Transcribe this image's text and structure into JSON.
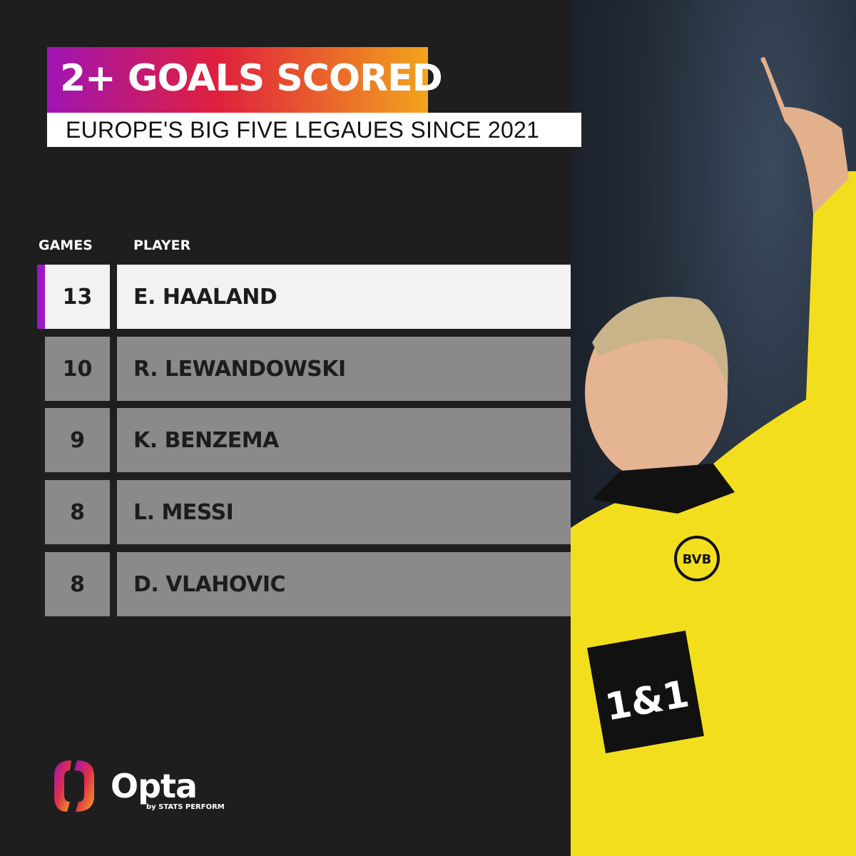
{
  "header": {
    "title": "2+ GOALS SCORED",
    "subtitle": "EUROPE'S  BIG FIVE LEGAUES SINCE 2021"
  },
  "columns": {
    "games": "GAMES",
    "player": "PLAYER"
  },
  "chart_data": {
    "type": "table",
    "columns": [
      "GAMES",
      "PLAYER"
    ],
    "rows": [
      {
        "games": "13",
        "player": "E. HAALAND"
      },
      {
        "games": "10",
        "player": "R. LEWANDOWSKI"
      },
      {
        "games": "9",
        "player": "K. BENZEMA"
      },
      {
        "games": "8",
        "player": "L. MESSI"
      },
      {
        "games": "8",
        "player": "D. VLAHOVIC"
      }
    ],
    "highlighted_row": 0
  },
  "colors": {
    "accent": "#9a18c0",
    "gradient_start": "#a014b4",
    "gradient_mid": "#e0203c",
    "gradient_end": "#f2a41c",
    "row_bg": "#8a8a8a",
    "highlight_bg": "#f2f2f2"
  },
  "branding": {
    "logo": "Opta",
    "tagline": "by STATS PERFORM",
    "sponsor": "1&1",
    "club_crest": "BVB 09"
  }
}
